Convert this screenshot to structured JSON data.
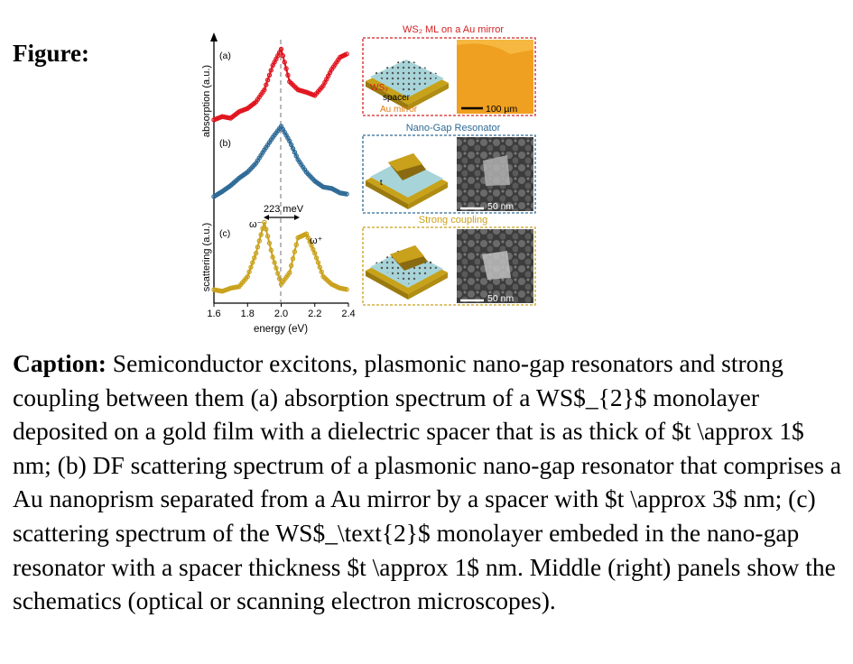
{
  "figure_label": "Figure:",
  "plot": {
    "y_label_top": "absorption (a.u.)",
    "y_label_bottom": "scattering (a.u.)",
    "x_label": "energy (eV)",
    "x_ticks": [
      "1.6",
      "1.8",
      "2.0",
      "2.2",
      "2.4"
    ],
    "panel_a": "(a)",
    "panel_b": "(b)",
    "panel_c": "(c)",
    "splitting_label": "223 meV",
    "omega_minus": "ω⁻",
    "omega_plus": "ω⁺",
    "colors": {
      "a": "#e0141e",
      "b": "#2e6a96",
      "c": "#c9a11a"
    }
  },
  "chart_data": {
    "type": "line",
    "xlabel": "energy (eV)",
    "xlim": [
      1.6,
      2.4
    ],
    "series": [
      {
        "name": "(a)",
        "x": [
          1.6,
          1.65,
          1.7,
          1.75,
          1.8,
          1.85,
          1.9,
          1.95,
          2.0,
          2.05,
          2.1,
          2.15,
          2.2,
          2.25,
          2.3,
          2.35,
          2.4
        ],
        "y": [
          0.08,
          0.12,
          0.1,
          0.18,
          0.22,
          0.3,
          0.45,
          0.75,
          0.95,
          0.55,
          0.45,
          0.42,
          0.38,
          0.5,
          0.7,
          0.85,
          0.9
        ]
      },
      {
        "name": "(b)",
        "x": [
          1.6,
          1.65,
          1.7,
          1.75,
          1.8,
          1.85,
          1.9,
          1.95,
          2.0,
          2.05,
          2.1,
          2.15,
          2.2,
          2.25,
          2.3,
          2.35,
          2.4
        ],
        "y": [
          0.05,
          0.12,
          0.2,
          0.3,
          0.38,
          0.5,
          0.68,
          0.85,
          1.0,
          0.8,
          0.55,
          0.38,
          0.26,
          0.18,
          0.16,
          0.1,
          0.08
        ]
      },
      {
        "name": "(c)",
        "x": [
          1.6,
          1.65,
          1.7,
          1.75,
          1.8,
          1.85,
          1.9,
          1.95,
          2.0,
          2.05,
          2.1,
          2.15,
          2.2,
          2.25,
          2.3,
          2.35,
          2.4
        ],
        "y": [
          0.08,
          0.06,
          0.1,
          0.12,
          0.25,
          0.55,
          0.95,
          0.5,
          0.15,
          0.3,
          0.75,
          0.8,
          0.55,
          0.25,
          0.15,
          0.1,
          0.08
        ]
      }
    ]
  },
  "panels": {
    "row1_title": "WS₂ ML on a Au mirror",
    "row1_ws2": "WS₂",
    "row1_spacer": "spacer",
    "row1_mirror": "Au mirror",
    "row1_scale": "100 µm",
    "row2_title": "Nano-Gap Resonator",
    "row2_t": "t",
    "row2_scale": "50 nm",
    "row3_title": "Strong coupling",
    "row3_scale": "50 nm"
  },
  "caption": {
    "label": "Caption:",
    "text": " Semiconductor excitons, plasmonic nano-gap resonators and strong coupling between them (a) absorption spectrum of a WS$_{2}$ monolayer deposited on a gold film with a dielectric spacer that is as thick of $t \\approx 1$ nm; (b) DF scattering spectrum of a plasmonic nano-gap resonator that comprises a Au nanoprism separated from a Au mirror by a spacer with $t \\approx 3$ nm; (c) scattering spectrum of the WS$_\\text{2}$ monolayer embeded in the nano-gap resonator with a spacer thickness $t \\approx 1$ nm. Middle (right) panels show the schematics (optical or scanning electron microscopes)."
  }
}
